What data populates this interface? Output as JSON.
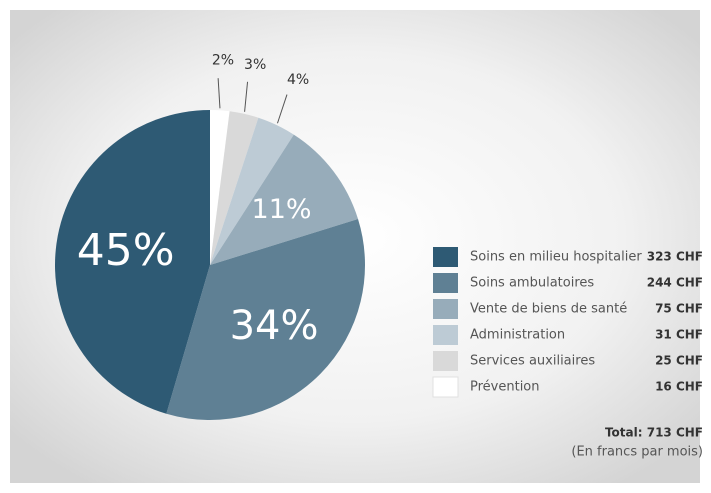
{
  "chart_data": {
    "type": "pie",
    "categories": [
      "Soins en milieu hospitalier",
      "Soins ambulatoires",
      "Vente de biens de santé",
      "Administration",
      "Services auxiliaires",
      "Prévention"
    ],
    "values": [
      45,
      34,
      11,
      4,
      3,
      2
    ],
    "value_labels": [
      "45%",
      "34%",
      "11%",
      "4%",
      "3%",
      "2%"
    ],
    "colors": [
      "#2e5a74",
      "#5f8094",
      "#97acba",
      "#bdcbd5",
      "#d9d9d9",
      "#ffffff"
    ],
    "amounts": [
      "323 CHF",
      "244 CHF",
      "75 CHF",
      "31 CHF",
      "25 CHF",
      "16 CHF"
    ],
    "total": "Total: 713 CHF",
    "note": "(En francs par mois)",
    "legend": "right"
  }
}
